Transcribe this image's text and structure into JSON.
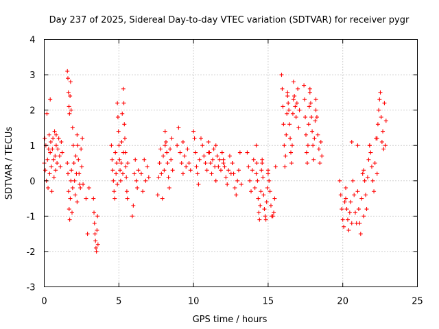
{
  "chart_data": {
    "type": "scatter",
    "title": "Day 237 of 2025, Sidereal Day-to-day VTEC variation (SDTVAR) for receiver pygr",
    "xlabel": "GPS time / hours",
    "ylabel": "SDTVAR / TECUs",
    "xlim": [
      0,
      25
    ],
    "ylim": [
      -3,
      4
    ],
    "xticks": [
      "0",
      "5",
      "10",
      "15",
      "20",
      "25"
    ],
    "yticks": [
      "-3",
      "-2",
      "-1",
      "0",
      "1",
      "2",
      "3",
      "4"
    ],
    "grid": true,
    "marker": "+",
    "color": "#ff0000",
    "series": [
      {
        "name": "SDTVAR",
        "segments": [
          {
            "x0": 0.0,
            "x1": 0.4,
            "y": [
              0.5,
              1.2,
              0.3,
              1.0,
              0.0,
              1.9,
              0.6,
              -0.2,
              0.9,
              1.3,
              0.2,
              0.8
            ]
          },
          {
            "x0": 0.4,
            "x1": 0.8,
            "y": [
              2.3,
              1.1,
              0.4,
              -0.3,
              0.9,
              1.2,
              0.6,
              0.1,
              1.4,
              0.7,
              0.3,
              1.0
            ]
          },
          {
            "x0": 0.8,
            "x1": 1.2,
            "y": [
              1.3,
              0.5,
              0.9,
              1.2,
              0.7,
              0.4,
              1.1,
              0.8
            ]
          },
          {
            "x0": 1.55,
            "x1": 1.8,
            "y": [
              3.1,
              2.9,
              2.5,
              2.1,
              1.9,
              2.4,
              2.8,
              2.0
            ]
          },
          {
            "x0": 1.55,
            "x1": 1.9,
            "y": [
              0.5,
              0.2,
              -0.3,
              -0.8,
              -1.1,
              -0.5,
              0.0,
              0.3,
              -0.9,
              -0.2
            ]
          },
          {
            "x0": 1.9,
            "x1": 2.2,
            "y": [
              1.5,
              1.0,
              0.5,
              0.0,
              -0.4,
              0.7,
              0.2,
              -0.6
            ]
          },
          {
            "x0": 2.2,
            "x1": 2.6,
            "y": [
              1.3,
              1.0,
              0.6,
              0.2,
              -0.1,
              -0.2,
              0.9,
              0.4,
              1.2,
              -0.1
            ]
          },
          {
            "x0": 2.8,
            "x1": 3.0,
            "y": [
              -0.5,
              -1.5,
              -0.2
            ]
          },
          {
            "x0": 3.3,
            "x1": 3.6,
            "y": [
              -0.5,
              -0.9,
              -1.2,
              -1.5,
              -1.7,
              -1.9,
              -2.0,
              -1.4,
              -1.0,
              -1.8
            ]
          },
          {
            "x0": 4.5,
            "x1": 4.9,
            "y": [
              1.0,
              0.6,
              0.3,
              0.0,
              -0.3,
              -0.5,
              0.8,
              0.2,
              0.5,
              -0.1
            ]
          },
          {
            "x0": 4.9,
            "x1": 5.3,
            "y": [
              2.2,
              1.8,
              1.4,
              1.0,
              0.6,
              0.3,
              0.0,
              0.5,
              1.1,
              1.9,
              0.2,
              0.8
            ]
          },
          {
            "x0": 5.3,
            "x1": 5.6,
            "y": [
              2.6,
              2.2,
              1.6,
              1.2,
              0.8,
              0.4,
              0.1,
              -0.3,
              -0.5,
              0.5
            ]
          },
          {
            "x0": 5.9,
            "x1": 6.3,
            "y": [
              -1.0,
              -0.7,
              0.2,
              0.6,
              0.0,
              -0.2,
              0.3
            ]
          },
          {
            "x0": 6.5,
            "x1": 7.0,
            "y": [
              0.2,
              -0.3,
              0.6,
              0.0,
              0.4,
              0.1
            ]
          },
          {
            "x0": 7.6,
            "x1": 8.1,
            "y": [
              -0.4,
              0.1,
              0.5,
              0.9,
              0.2,
              -0.5,
              0.7,
              0.3,
              1.0
            ]
          },
          {
            "x0": 8.1,
            "x1": 8.6,
            "y": [
              1.4,
              1.1,
              0.8,
              0.5,
              0.1,
              -0.2,
              0.9,
              0.6,
              1.2,
              0.3
            ]
          },
          {
            "x0": 8.9,
            "x1": 9.3,
            "y": [
              1.0,
              1.5,
              0.8,
              0.5,
              0.2
            ]
          },
          {
            "x0": 9.3,
            "x1": 9.8,
            "y": [
              1.1,
              0.7,
              0.4,
              0.9,
              0.5,
              0.3
            ]
          },
          {
            "x0": 10.0,
            "x1": 10.4,
            "y": [
              1.4,
              1.2,
              0.8,
              0.4,
              0.2,
              -0.1,
              0.6
            ]
          },
          {
            "x0": 10.5,
            "x1": 11.0,
            "y": [
              1.2,
              1.0,
              0.7,
              0.5,
              0.3,
              0.8
            ]
          },
          {
            "x0": 11.0,
            "x1": 11.5,
            "y": [
              1.1,
              0.8,
              0.5,
              0.2,
              0.6,
              0.9,
              0.4,
              0.0
            ]
          },
          {
            "x0": 11.5,
            "x1": 12.0,
            "y": [
              1.0,
              0.7,
              0.4,
              0.6,
              0.3,
              0.8,
              0.5
            ]
          },
          {
            "x0": 12.0,
            "x1": 12.6,
            "y": [
              0.6,
              0.4,
              0.1,
              -0.1,
              0.3,
              0.7,
              0.2,
              0.5
            ]
          },
          {
            "x0": 12.6,
            "x1": 13.2,
            "y": [
              0.5,
              0.2,
              -0.2,
              -0.4,
              0.0,
              0.3,
              0.8,
              -0.1
            ]
          },
          {
            "x0": 13.6,
            "x1": 14.2,
            "y": [
              0.8,
              0.4,
              0.0,
              -0.3,
              0.3,
              0.6,
              -0.2,
              0.2
            ]
          },
          {
            "x0": 14.2,
            "x1": 14.6,
            "y": [
              1.0,
              0.5,
              0.0,
              -0.5,
              -0.9,
              -1.1,
              -0.7,
              -0.3,
              0.3,
              0.6
            ]
          },
          {
            "x0": 14.6,
            "x1": 15.0,
            "y": [
              0.5,
              0.1,
              -0.4,
              -0.8,
              -1.0,
              -1.1,
              -0.6,
              -0.2,
              0.2
            ]
          },
          {
            "x0": 15.0,
            "x1": 15.5,
            "y": [
              0.3,
              0.0,
              -0.3,
              -0.7,
              -1.0,
              -1.0,
              -0.9,
              -0.5,
              0.4
            ]
          },
          {
            "x0": 15.9,
            "x1": 16.3,
            "y": [
              3.0,
              2.6,
              2.1,
              1.6,
              1.0,
              0.4,
              0.7,
              1.3,
              1.9,
              2.4
            ]
          },
          {
            "x0": 16.3,
            "x1": 16.7,
            "y": [
              2.5,
              2.2,
              2.0,
              1.6,
              1.2,
              0.8,
              0.5,
              1.0,
              1.9,
              2.3
            ]
          },
          {
            "x0": 16.7,
            "x1": 17.1,
            "y": [
              2.8,
              2.4,
              2.1,
              1.8,
              2.2,
              2.6,
              1.5,
              2.0
            ]
          },
          {
            "x0": 17.4,
            "x1": 17.8,
            "y": [
              2.7,
              2.3,
              1.8,
              1.3,
              0.8,
              0.5,
              1.0,
              1.6,
              2.1,
              2.5
            ]
          },
          {
            "x0": 17.8,
            "x1": 18.2,
            "y": [
              2.6,
              2.2,
              1.8,
              1.4,
              1.0,
              0.6,
              1.2,
              1.7,
              2.0
            ]
          },
          {
            "x0": 18.2,
            "x1": 18.6,
            "y": [
              2.3,
              1.8,
              1.3,
              0.9,
              0.5,
              1.1,
              0.7
            ]
          },
          {
            "x0": 19.8,
            "x1": 20.2,
            "y": [
              0.0,
              -0.4,
              -0.8,
              -1.1,
              -1.3,
              -0.6,
              -0.2
            ]
          },
          {
            "x0": 20.2,
            "x1": 20.6,
            "y": [
              -0.5,
              -0.8,
              -1.1,
              -1.4,
              -0.9,
              -0.6,
              -1.2
            ]
          },
          {
            "x0": 20.6,
            "x1": 21.0,
            "y": [
              1.1,
              0.0,
              -0.4,
              -0.9,
              -1.2,
              1.0
            ]
          },
          {
            "x0": 21.0,
            "x1": 21.4,
            "y": [
              -0.3,
              -0.8,
              -1.2,
              -1.5,
              -0.5,
              0.2,
              -1.0
            ]
          },
          {
            "x0": 21.4,
            "x1": 21.8,
            "y": [
              0.3,
              0.0,
              -0.4,
              -0.8,
              0.1,
              0.6,
              1.0
            ]
          },
          {
            "x0": 21.8,
            "x1": 22.3,
            "y": [
              1.0,
              0.8,
              0.4,
              0.0,
              -0.3,
              0.5,
              1.2,
              0.2
            ]
          },
          {
            "x0": 22.3,
            "x1": 22.9,
            "y": [
              1.2,
              1.6,
              2.0,
              2.3,
              2.5,
              1.8,
              1.1,
              1.4,
              0.9,
              2.2,
              1.0,
              1.7
            ]
          }
        ]
      }
    ]
  }
}
